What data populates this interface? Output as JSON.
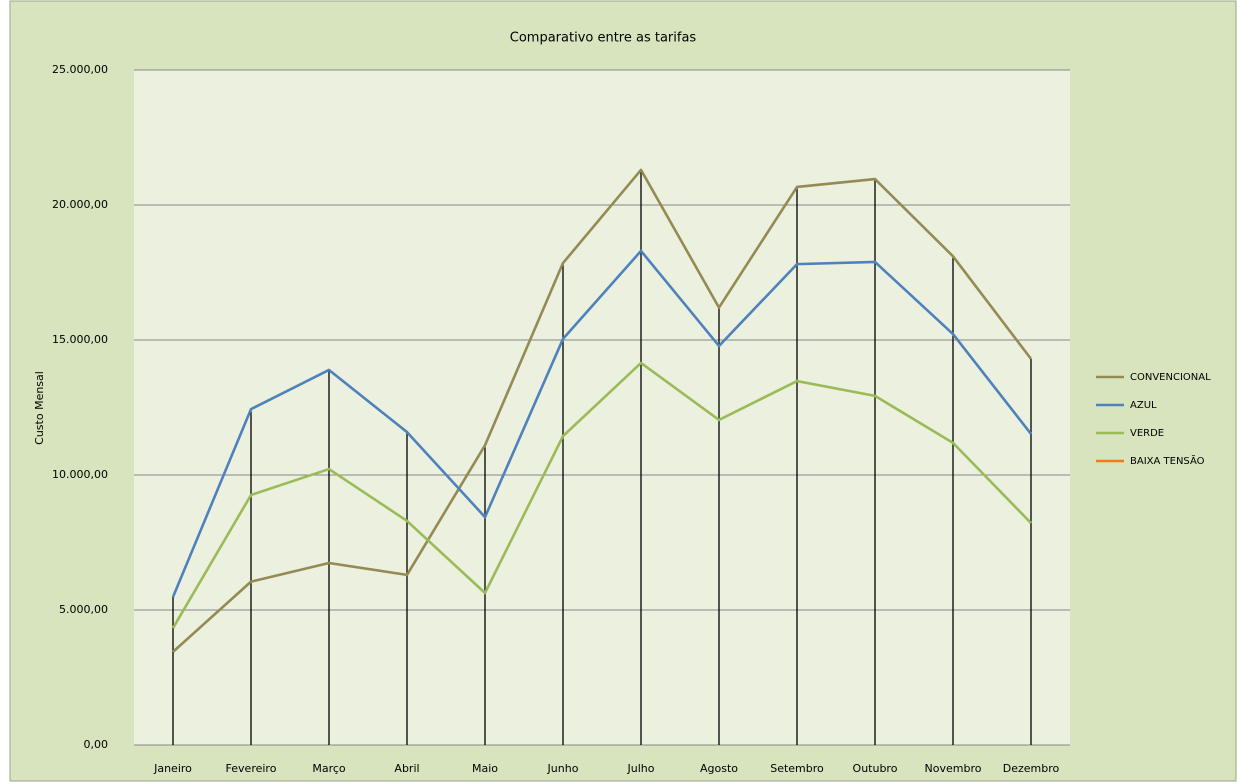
{
  "chart_data": {
    "type": "line",
    "title": "Comparativo entre as tarifas",
    "y_label": "Custo Mensal",
    "categories": [
      "Janeiro",
      "Fevereiro",
      "Março",
      "Abril",
      "Maio",
      "Junho",
      "Julho",
      "Agosto",
      "Setembro",
      "Outubro",
      "Novembro",
      "Dezembro"
    ],
    "series": [
      {
        "name": "CONVENCIONAL",
        "color": "#948a54",
        "values": [
          3450,
          6050,
          6740,
          6300,
          11100,
          17850,
          21300,
          16200,
          20670,
          20960,
          18100,
          14300
        ]
      },
      {
        "name": "AZUL",
        "color": "#4f81bd",
        "values": [
          5480,
          12440,
          13890,
          11590,
          8440,
          15040,
          18300,
          14780,
          17810,
          17890,
          15220,
          11520
        ]
      },
      {
        "name": "VERDE",
        "color": "#9bbb59",
        "values": [
          4330,
          9260,
          10220,
          8300,
          5630,
          11440,
          14150,
          12040,
          13480,
          12930,
          11190,
          8220
        ]
      },
      {
        "name": "BAIXA TENSÃO",
        "color": "#f07c16",
        "values": [
          null,
          null,
          null,
          null,
          null,
          null,
          null,
          null,
          null,
          null,
          null,
          null
        ]
      }
    ],
    "ylim": [
      0,
      25000
    ],
    "yticks": [
      {
        "value": 0,
        "label": "0,00"
      },
      {
        "value": 5000,
        "label": "5.000,00"
      },
      {
        "value": 10000,
        "label": "10.000,00"
      },
      {
        "value": 15000,
        "label": "15.000,00"
      },
      {
        "value": 20000,
        "label": "20.000,00"
      },
      {
        "value": 25000,
        "label": "25.000,00"
      }
    ],
    "grid": true,
    "legend": "right"
  }
}
